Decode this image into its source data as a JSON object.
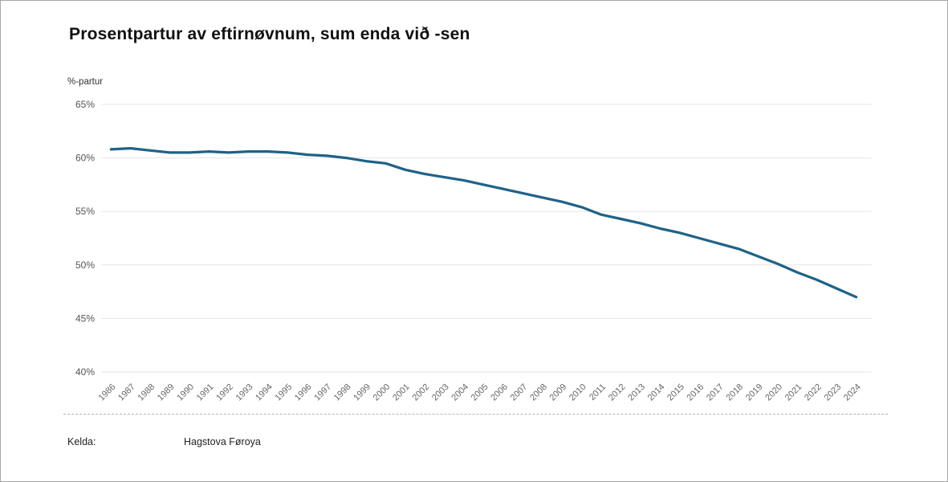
{
  "page": {
    "footer": {
      "source_label": "Kelda:",
      "source_value": "Hagstova Føroya"
    }
  },
  "chart_data": {
    "type": "line",
    "title": "Prosentpartur av eftirnøvnum, sum enda við -sen",
    "ylabel": "%-partur",
    "xlabel": "",
    "x": [
      1986,
      1987,
      1988,
      1989,
      1990,
      1991,
      1992,
      1993,
      1994,
      1995,
      1996,
      1997,
      1998,
      1999,
      2000,
      2001,
      2002,
      2003,
      2004,
      2005,
      2006,
      2007,
      2008,
      2009,
      2010,
      2011,
      2012,
      2013,
      2014,
      2015,
      2016,
      2017,
      2018,
      2019,
      2020,
      2021,
      2022,
      2023,
      2024
    ],
    "series": [
      {
        "name": "%-partur",
        "color": "#1f6287",
        "values": [
          60.8,
          60.9,
          60.7,
          60.5,
          60.5,
          60.6,
          60.5,
          60.6,
          60.6,
          60.5,
          60.3,
          60.2,
          60.0,
          59.7,
          59.5,
          58.9,
          58.5,
          58.2,
          57.9,
          57.5,
          57.1,
          56.7,
          56.3,
          55.9,
          55.4,
          54.7,
          54.3,
          53.9,
          53.4,
          53.0,
          52.5,
          52.0,
          51.5,
          50.8,
          50.1,
          49.3,
          48.6,
          47.8,
          47.0
        ]
      }
    ],
    "ylim": [
      40,
      65
    ],
    "yticks": [
      40,
      45,
      50,
      55,
      60,
      65
    ],
    "ytick_suffix": "%",
    "grid": true,
    "legend_position": "none",
    "gridline_color": "#e6e6e6",
    "tick_label_color": "#666666"
  }
}
